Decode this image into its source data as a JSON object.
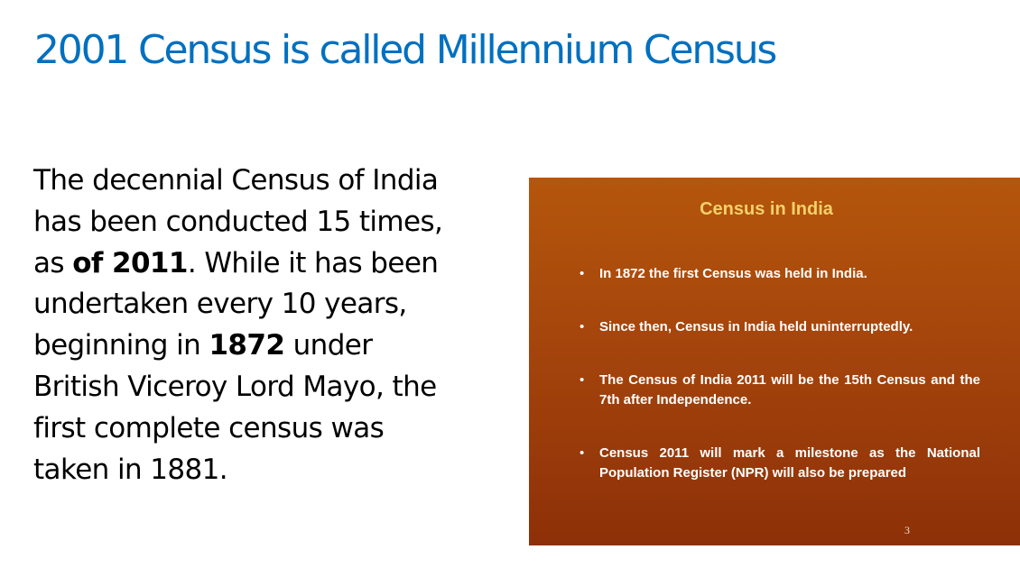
{
  "slide": {
    "title": "2001 Census is called Millennium Census"
  },
  "body": {
    "line1": "The decennial Census of India",
    "line2": "has been conducted 15 times,",
    "line3_pre": "as ",
    "line3_bold": "of 2011",
    "line3_post": ". While it has been",
    "line4": "undertaken every 10 years,",
    "line5_pre": "beginning in ",
    "line5_bold": "1872",
    "line5_post": " under",
    "line6": "British Viceroy Lord Mayo, the",
    "line7": "first complete census was",
    "line8": "taken in 1881."
  },
  "panel": {
    "title": "Census in India",
    "bullets": [
      "In 1872 the first Census was held in India.",
      "Since then, Census in India held uninterruptedly.",
      "The Census of India 2011 will be the 15th Census and the 7th after Independence.",
      "Census 2011 will mark a milestone as the National Population Register (NPR) will also be prepared"
    ],
    "page_number": "3"
  },
  "colors": {
    "title": "#0070c0",
    "body_text": "#000000",
    "panel_background": "#a5450c",
    "panel_title": "#f5d06a",
    "panel_text": "#ffffff"
  }
}
